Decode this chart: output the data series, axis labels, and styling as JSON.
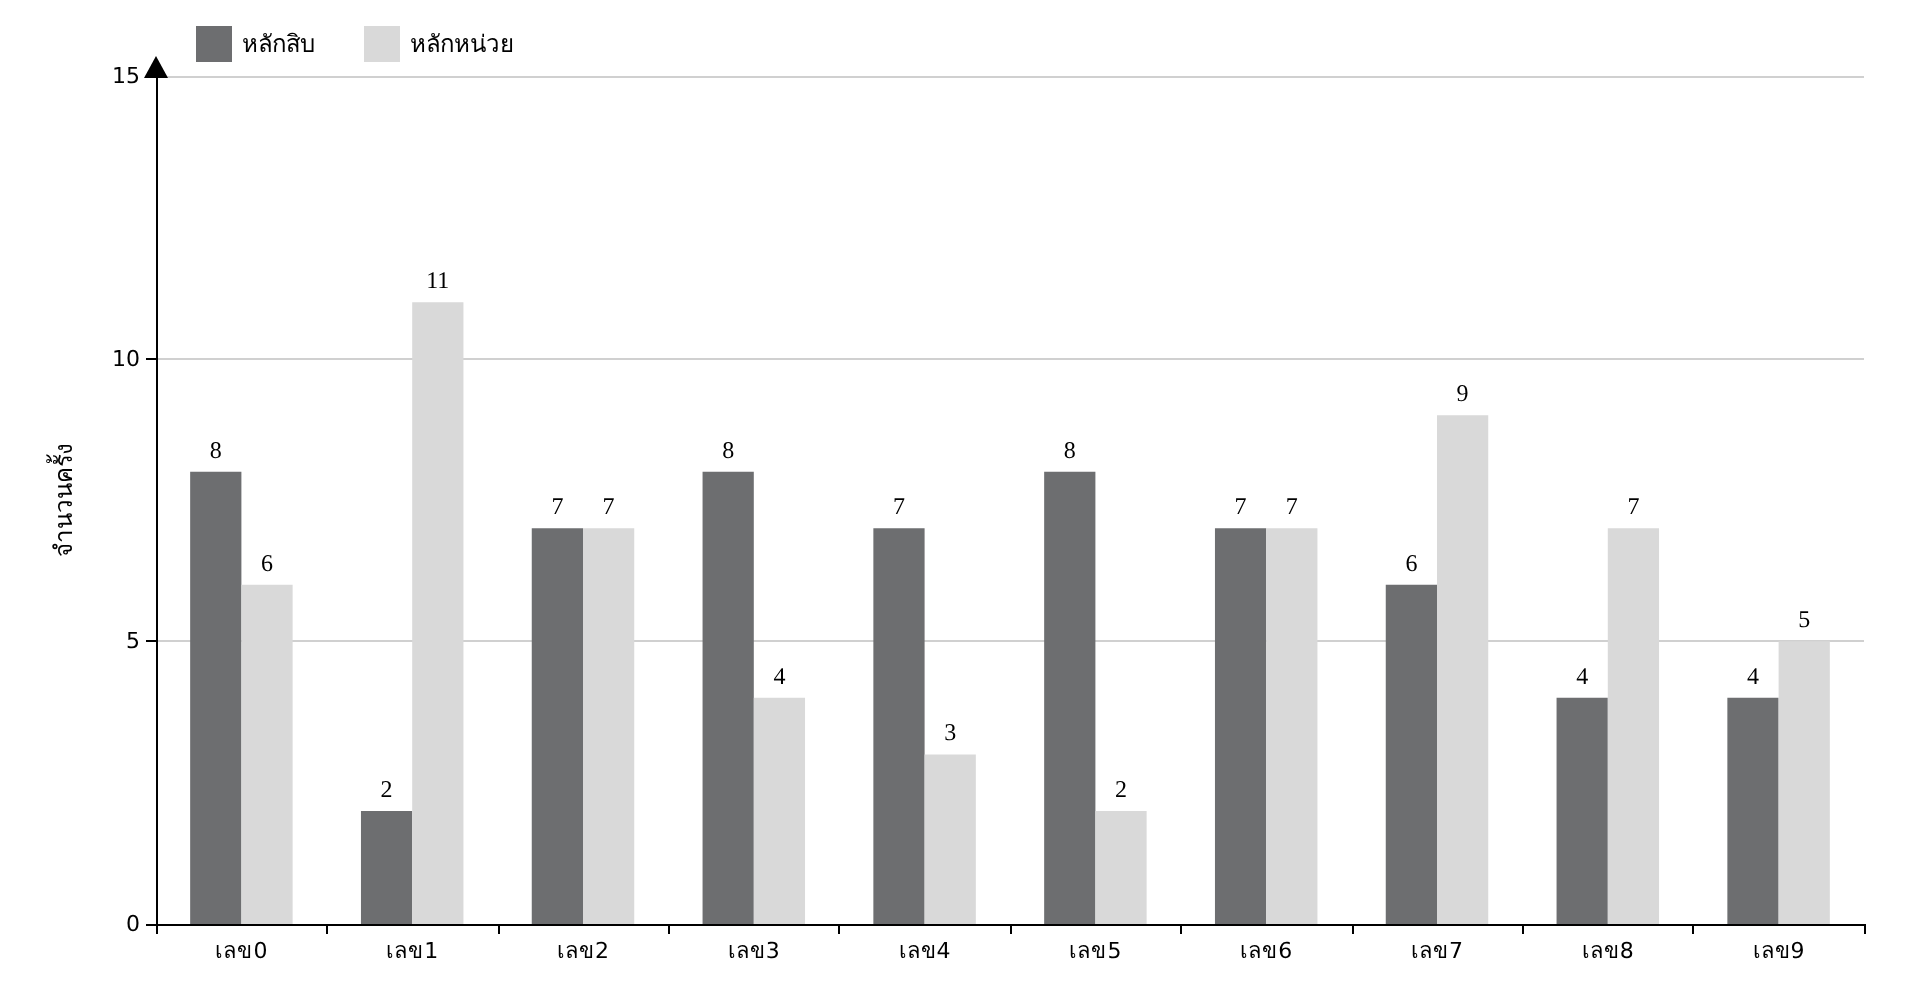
{
  "chart_data": {
    "type": "bar",
    "ylabel": "จำนวนครั้ง",
    "categories": [
      "เลข0",
      "เลข1",
      "เลข2",
      "เลข3",
      "เลข4",
      "เลข5",
      "เลข6",
      "เลข7",
      "เลข8",
      "เลข9"
    ],
    "series": [
      {
        "name": "หลักสิบ",
        "color": "#6d6e70",
        "values": [
          8,
          2,
          7,
          8,
          7,
          8,
          7,
          6,
          4,
          4
        ]
      },
      {
        "name": "หลักหน่วย",
        "color": "#d9d9d9",
        "values": [
          6,
          11,
          7,
          4,
          3,
          2,
          7,
          9,
          7,
          5
        ]
      }
    ],
    "ylim": [
      0,
      15
    ],
    "yticks": [
      0,
      5,
      10,
      15
    ],
    "grid": "y",
    "legend": "top left",
    "data_labels": true
  }
}
